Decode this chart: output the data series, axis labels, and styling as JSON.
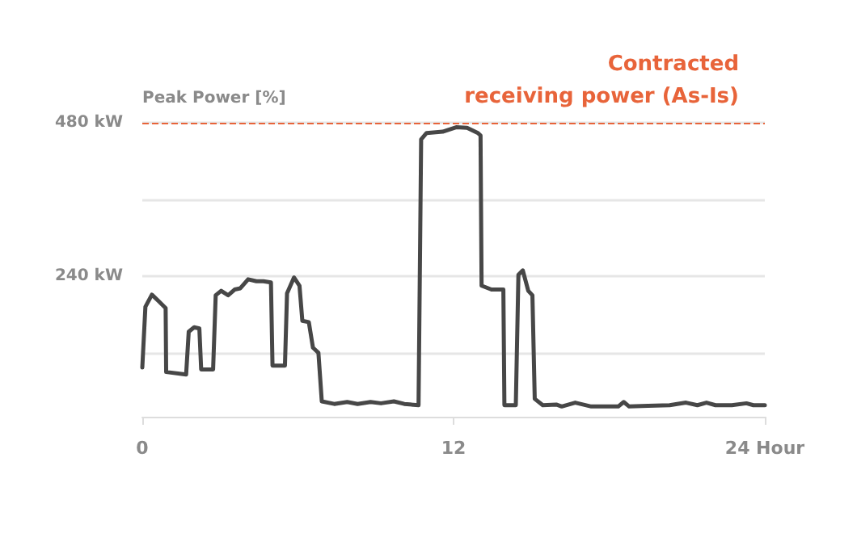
{
  "chart_data": {
    "type": "line",
    "ylabel": "Peak Power [%]",
    "xlim": [
      0,
      24
    ],
    "xticks": [
      0,
      12,
      {
        "value": 24,
        "label": "24 Hour"
      }
    ],
    "ylim": [
      20,
      480
    ],
    "yticks": [
      {
        "value": 120,
        "label": null
      },
      {
        "value": 240,
        "label": "240 kW"
      },
      {
        "value": 360,
        "label": null
      },
      {
        "value": 480,
        "label": "480 kW"
      }
    ],
    "grid": "y",
    "marker": "none",
    "line_style": "solid",
    "series": [
      {
        "color": "#474747",
        "x": [
          0,
          0.12,
          0.37,
          0.65,
          0.9,
          0.92,
          1.69,
          1.79,
          2.0,
          2.2,
          2.27,
          2.73,
          2.83,
          3.04,
          3.31,
          3.56,
          3.78,
          4.08,
          4.4,
          4.67,
          4.96,
          5.02,
          5.5,
          5.58,
          5.85,
          6.06,
          6.17,
          6.42,
          6.58,
          6.79,
          6.92,
          7.4,
          7.9,
          8.3,
          8.8,
          9.2,
          9.7,
          10.1,
          10.65,
          10.75,
          10.96,
          11.58,
          12.1,
          12.52,
          12.94,
          13.04,
          13.08,
          13.46,
          13.92,
          13.96,
          14.4,
          14.5,
          14.67,
          14.88,
          15.04,
          15.13,
          15.44,
          15.96,
          16.17,
          16.69,
          17.31,
          18.35,
          18.56,
          18.77,
          19.5,
          20.33,
          20.96,
          21.4,
          21.75,
          22.1,
          22.73,
          23.29,
          23.56,
          24
        ],
        "values": [
          97,
          192,
          211,
          200,
          190,
          90,
          86,
          153,
          160,
          158,
          94,
          94,
          210,
          217,
          210,
          219,
          221,
          235,
          232,
          232,
          230,
          100,
          100,
          213,
          238,
          225,
          170,
          168,
          128,
          120,
          44,
          40,
          43,
          40,
          43,
          41,
          44,
          40,
          38,
          454,
          464,
          466,
          473,
          472,
          464,
          460,
          225,
          219,
          219,
          38,
          38,
          242,
          249,
          217,
          210,
          48,
          38,
          39,
          36,
          42,
          36,
          36,
          43,
          36,
          37,
          38,
          42,
          38,
          42,
          38,
          38,
          41,
          38,
          38
        ]
      }
    ],
    "ref_lines": [
      {
        "axis": "y",
        "value": 480,
        "label": "Contracted receiving power (As-Is)",
        "color": "#e8643a",
        "line_style": "dashed"
      }
    ]
  }
}
